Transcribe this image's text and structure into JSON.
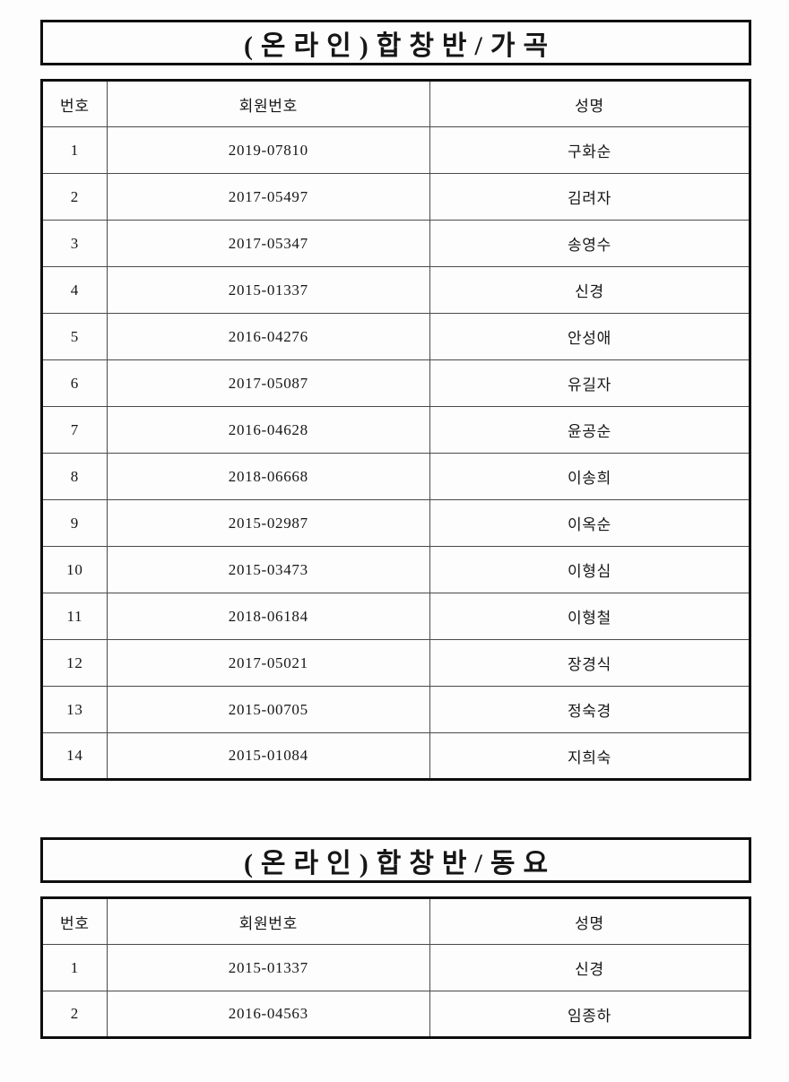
{
  "sections": [
    {
      "title": "(온라인)합창반/가곡",
      "columns": [
        "번호",
        "회원번호",
        "성명"
      ],
      "rows": [
        [
          "1",
          "2019-07810",
          "구화순"
        ],
        [
          "2",
          "2017-05497",
          "김려자"
        ],
        [
          "3",
          "2017-05347",
          "송영수"
        ],
        [
          "4",
          "2015-01337",
          "신경"
        ],
        [
          "5",
          "2016-04276",
          "안성애"
        ],
        [
          "6",
          "2017-05087",
          "유길자"
        ],
        [
          "7",
          "2016-04628",
          "윤공순"
        ],
        [
          "8",
          "2018-06668",
          "이송희"
        ],
        [
          "9",
          "2015-02987",
          "이옥순"
        ],
        [
          "10",
          "2015-03473",
          "이형심"
        ],
        [
          "11",
          "2018-06184",
          "이형철"
        ],
        [
          "12",
          "2017-05021",
          "장경식"
        ],
        [
          "13",
          "2015-00705",
          "정숙경"
        ],
        [
          "14",
          "2015-01084",
          "지희숙"
        ]
      ]
    },
    {
      "title": "(온라인)합창반/동요",
      "columns": [
        "번호",
        "회원번호",
        "성명"
      ],
      "rows": [
        [
          "1",
          "2015-01337",
          "신경"
        ],
        [
          "2",
          "2016-04563",
          "임종하"
        ]
      ]
    }
  ]
}
